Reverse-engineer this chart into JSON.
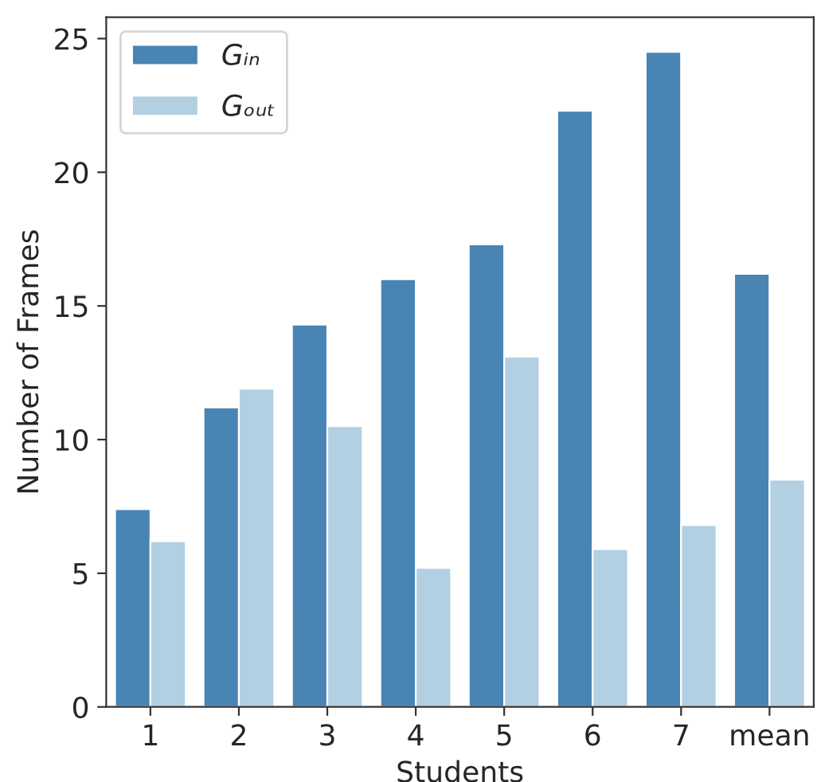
{
  "chart_data": {
    "type": "bar",
    "xlabel": "Students",
    "ylabel": "Number of Frames",
    "categories": [
      "1",
      "2",
      "3",
      "4",
      "5",
      "6",
      "7",
      "mean"
    ],
    "series": [
      {
        "name": "Gᵢₙ",
        "color": "#4884b4",
        "values": [
          7.4,
          11.2,
          14.3,
          16.0,
          17.3,
          22.3,
          24.5,
          16.2
        ]
      },
      {
        "name": "Gₒᵤₜ",
        "color": "#b3cfe2",
        "values": [
          6.2,
          11.9,
          10.5,
          5.2,
          13.1,
          5.9,
          6.8,
          8.5
        ]
      }
    ],
    "ylim": [
      0,
      25.8
    ],
    "yticks": [
      0,
      5,
      10,
      15,
      20,
      25
    ],
    "legend": "top left",
    "grid": false
  }
}
